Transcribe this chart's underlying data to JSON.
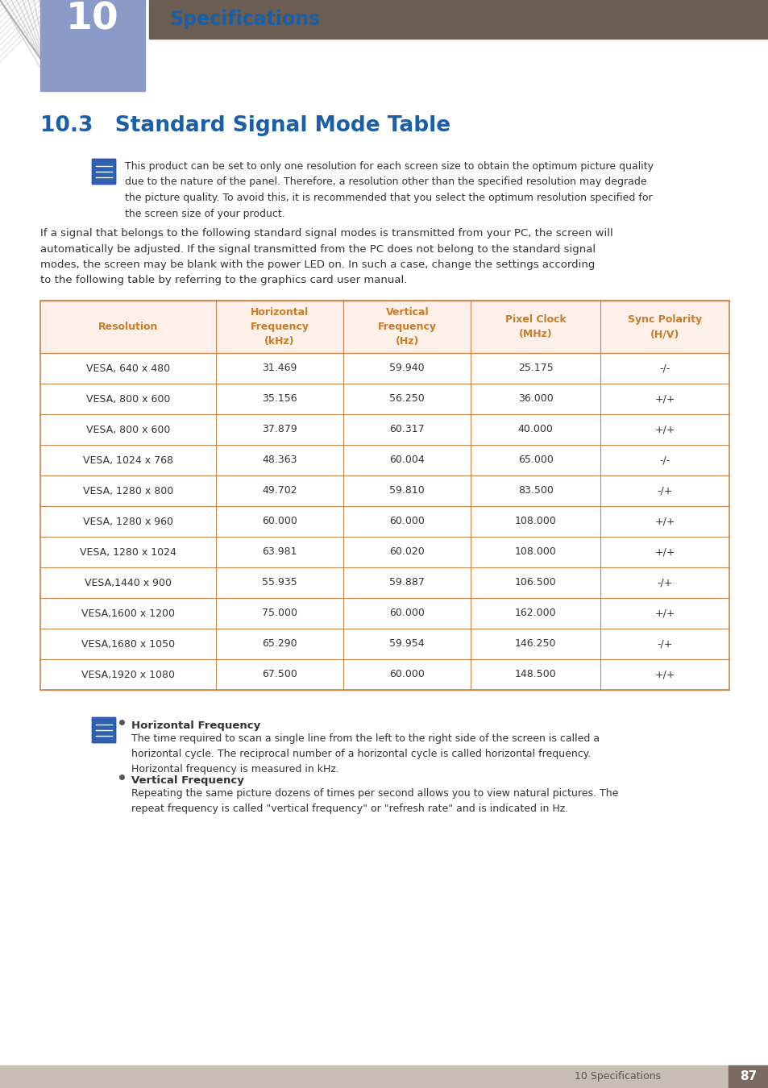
{
  "page_bg": "#ffffff",
  "header_bg": "#6b5d52",
  "chapter_num": "10",
  "chapter_num_color_top": "#8a9bc8",
  "chapter_num_color_bot": "#6070b0",
  "chapter_title": "Specifications",
  "chapter_title_color": "#1a5fa8",
  "section_title": "10.3   Standard Signal Mode Table",
  "section_title_color": "#1a5fa8",
  "note_text": "This product can be set to only one resolution for each screen size to obtain the optimum picture quality\ndue to the nature of the panel. Therefore, a resolution other than the specified resolution may degrade\nthe picture quality. To avoid this, it is recommended that you select the optimum resolution specified for\nthe screen size of your product.",
  "body_text": "If a signal that belongs to the following standard signal modes is transmitted from your PC, the screen will\nautomatically be adjusted. If the signal transmitted from the PC does not belong to the standard signal\nmodes, the screen may be blank with the power LED on. In such a case, change the settings according\nto the following table by referring to the graphics card user manual.",
  "table_header_bg": "#fdf0e8",
  "table_header_color": "#c87d2a",
  "table_border_color": "#c8864a",
  "table_text_color": "#333333",
  "table_headers": [
    "Resolution",
    "Horizontal\nFrequency\n(kHz)",
    "Vertical\nFrequency\n(Hz)",
    "Pixel Clock\n(MHz)",
    "Sync Polarity\n(H/V)"
  ],
  "table_rows": [
    [
      "VESA, 640 x 480",
      "31.469",
      "59.940",
      "25.175",
      "-/-"
    ],
    [
      "VESA, 800 x 600",
      "35.156",
      "56.250",
      "36.000",
      "+/+"
    ],
    [
      "VESA, 800 x 600",
      "37.879",
      "60.317",
      "40.000",
      "+/+"
    ],
    [
      "VESA, 1024 x 768",
      "48.363",
      "60.004",
      "65.000",
      "-/-"
    ],
    [
      "VESA, 1280 x 800",
      "49.702",
      "59.810",
      "83.500",
      "-/+"
    ],
    [
      "VESA, 1280 x 960",
      "60.000",
      "60.000",
      "108.000",
      "+/+"
    ],
    [
      "VESA, 1280 x 1024",
      "63.981",
      "60.020",
      "108.000",
      "+/+"
    ],
    [
      "VESA,1440 x 900",
      "55.935",
      "59.887",
      "106.500",
      "-/+"
    ],
    [
      "VESA,1600 x 1200",
      "75.000",
      "60.000",
      "162.000",
      "+/+"
    ],
    [
      "VESA,1680 x 1050",
      "65.290",
      "59.954",
      "146.250",
      "-/+"
    ],
    [
      "VESA,1920 x 1080",
      "67.500",
      "60.000",
      "148.500",
      "+/+"
    ]
  ],
  "footer_note1_title": "Horizontal Frequency",
  "footer_note1_text": "The time required to scan a single line from the left to the right side of the screen is called a\nhorizontal cycle. The reciprocal number of a horizontal cycle is called horizontal frequency.\nHorizontal frequency is measured in kHz.",
  "footer_note2_title": "Vertical Frequency",
  "footer_note2_text": "Repeating the same picture dozens of times per second allows you to view natural pictures. The\nrepeat frequency is called \"vertical frequency\" or \"refresh rate\" and is indicated in Hz.",
  "footer_text": "10 Specifications",
  "footer_page": "87",
  "footer_bg": "#c8beb4",
  "footer_page_bg": "#7a6a60"
}
